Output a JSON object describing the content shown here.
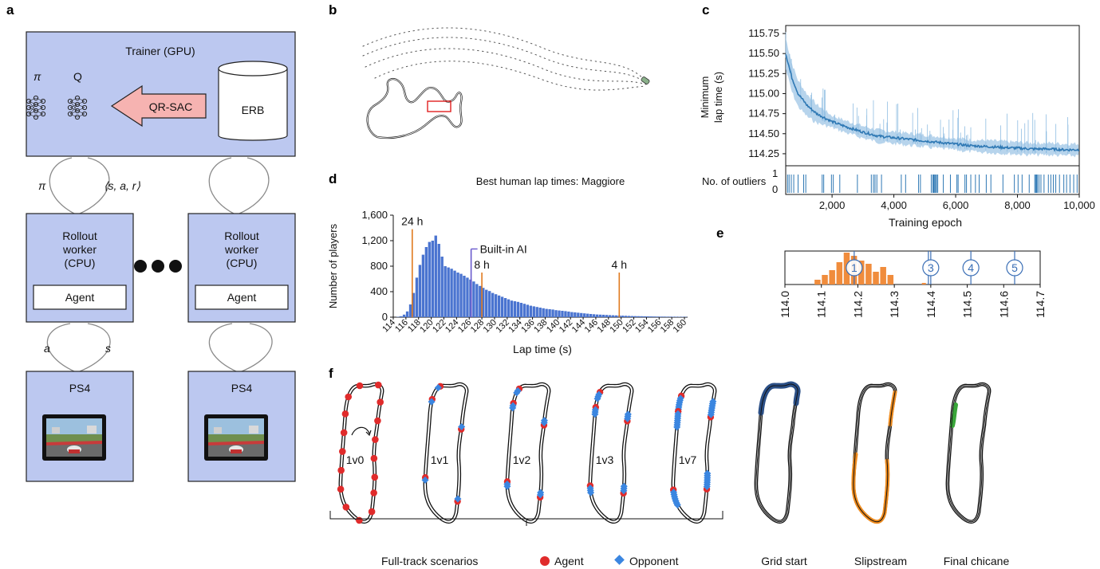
{
  "panels": {
    "a": "a",
    "b": "b",
    "c": "c",
    "d": "d",
    "e": "e",
    "f": "f"
  },
  "panel_a": {
    "trainer_title": "Trainer (GPU)",
    "pi_label": "π",
    "q_label": "Q",
    "qrsac_label": "QR-SAC",
    "erb_label": "ERB",
    "arc_left_label": "π",
    "arc_right_label": "⟨s, a, r⟩",
    "worker_line1": "Rollout",
    "worker_line2": "worker",
    "worker_line3": "(CPU)",
    "agent_label": "Agent",
    "a_label": "a",
    "s_label": "s",
    "ps4_label": "PS4",
    "colors": {
      "box": "#bcc8f0",
      "arrow": "#f6b3b1"
    }
  },
  "chart_data": [
    {
      "id": "c",
      "type": "line",
      "ylabel_line1": "Minimum",
      "ylabel_line2": "lap time (s)",
      "xlabel": "Training epoch",
      "ylim": [
        114.1,
        115.85
      ],
      "xlim": [
        500,
        10000
      ],
      "yticks": [
        "114.25",
        "114.50",
        "114.75",
        "115.00",
        "115.25",
        "115.50",
        "115.75"
      ],
      "ytick_values": [
        114.25,
        114.5,
        114.75,
        115.0,
        115.25,
        115.5,
        115.75
      ],
      "xticks": [
        "2,000",
        "4,000",
        "6,000",
        "8,000",
        "10,000"
      ],
      "xtick_values": [
        2000,
        4000,
        6000,
        8000,
        10000
      ],
      "series_x": [
        500,
        700,
        900,
        1200,
        1500,
        2000,
        2500,
        3000,
        3500,
        4000,
        4500,
        5000,
        5500,
        6000,
        6500,
        7000,
        7500,
        8000,
        8500,
        9000,
        9500,
        10000
      ],
      "series_y": [
        115.5,
        115.2,
        115.0,
        114.85,
        114.75,
        114.65,
        114.58,
        114.52,
        114.47,
        114.45,
        114.43,
        114.41,
        114.39,
        114.37,
        114.35,
        114.34,
        114.33,
        114.32,
        114.31,
        114.31,
        114.3,
        114.3
      ],
      "outliers_label": "No. of outliers",
      "outliers_yticks": [
        "1",
        "0"
      ],
      "outlier_epochs": [
        560,
        610,
        680,
        760,
        900,
        1080,
        1150,
        1680,
        1730,
        1980,
        2040,
        2250,
        2820,
        3270,
        3340,
        3390,
        3450,
        3600,
        4240,
        4380,
        4800,
        4860,
        5210,
        5260,
        5290,
        5320,
        5350,
        5380,
        5420,
        5600,
        5830,
        6040,
        6080,
        6300,
        6350,
        6490,
        6640,
        6760,
        6990,
        7140,
        7530,
        7900,
        8020,
        8150,
        8380,
        8560,
        8590,
        8620,
        8650,
        8700,
        8760,
        8860,
        9000,
        9080,
        9160,
        9240,
        9360,
        9500,
        9590,
        9700,
        9820,
        9930
      ],
      "color": "#2e78b4"
    },
    {
      "id": "d",
      "type": "bar",
      "title": "Best human lap times: Maggiore",
      "xlabel": "Lap time (s)",
      "ylabel": "Number of players",
      "ylim": [
        0,
        1600
      ],
      "yticks": [
        "0",
        "400",
        "800",
        "1,200",
        "1,600"
      ],
      "ytick_values": [
        0,
        400,
        800,
        1200,
        1600
      ],
      "xlim": [
        114,
        160.5
      ],
      "xticks": [
        "114",
        "116",
        "118",
        "120",
        "122",
        "124",
        "126",
        "128",
        "130",
        "132",
        "134",
        "136",
        "138",
        "140",
        "142",
        "144",
        "146",
        "148",
        "150",
        "152",
        "154",
        "156",
        "158",
        "160"
      ],
      "bin_start": 114.5,
      "bin_width": 0.5,
      "values": [
        5,
        15,
        40,
        90,
        200,
        380,
        620,
        820,
        980,
        1100,
        1180,
        1200,
        1280,
        1150,
        950,
        800,
        780,
        760,
        730,
        700,
        680,
        650,
        620,
        590,
        560,
        520,
        490,
        460,
        430,
        410,
        380,
        360,
        340,
        320,
        300,
        280,
        260,
        250,
        240,
        225,
        210,
        195,
        180,
        170,
        160,
        150,
        140,
        130,
        125,
        120,
        110,
        105,
        100,
        95,
        88,
        80,
        75,
        70,
        65,
        60,
        55,
        50,
        46,
        42,
        40,
        38,
        35,
        32,
        30,
        28,
        26,
        24,
        22,
        20,
        18,
        17,
        16,
        15,
        14,
        13,
        12,
        11,
        10,
        9,
        9,
        8,
        8,
        7,
        7,
        6,
        6,
        5
      ],
      "markers": [
        {
          "label": "24 h",
          "x": 117.0,
          "top": 1380,
          "color": "#e07b20"
        },
        {
          "label": "Built-in AI",
          "x": 126.3,
          "top": 1070,
          "color": "#6a5acd"
        },
        {
          "label": "8 h",
          "x": 128.0,
          "top": 700,
          "color": "#e07b20"
        },
        {
          "label": "4 h",
          "x": 149.7,
          "top": 700,
          "color": "#e07b20"
        }
      ],
      "color": "#4a74d0"
    },
    {
      "id": "e",
      "type": "bar",
      "xlim": [
        114.0,
        114.7
      ],
      "xticks": [
        "114.0",
        "114.1",
        "114.2",
        "114.3",
        "114.4",
        "114.5",
        "114.6",
        "114.7"
      ],
      "xtick_values": [
        114.0,
        114.1,
        114.2,
        114.3,
        114.4,
        114.5,
        114.6,
        114.7
      ],
      "bins_x": [
        114.09,
        114.11,
        114.13,
        114.15,
        114.17,
        114.19,
        114.21,
        114.23,
        114.25,
        114.27,
        114.29
      ],
      "values": [
        0.15,
        0.3,
        0.45,
        0.7,
        1.0,
        0.9,
        0.75,
        0.65,
        0.4,
        0.55,
        0.3
      ],
      "bar_color": "#f08c3c",
      "markers": [
        {
          "label": "1",
          "x": 114.19
        },
        {
          "label": "3",
          "x": 114.4
        },
        {
          "label": "4",
          "x": 114.51
        },
        {
          "label": "5",
          "x": 114.63
        }
      ],
      "marker_color": "#3b6fb6"
    }
  ],
  "panel_f": {
    "scenarios": [
      "1v0",
      "1v1",
      "1v2",
      "1v3",
      "1v7"
    ],
    "bracket_label": "Full-track scenarios",
    "legend_agent": "Agent",
    "legend_opponent": "Opponent",
    "grid_start": "Grid start",
    "slipstream": "Slipstream",
    "final_chicane": "Final chicane",
    "colors": {
      "agent": "#e02b2b",
      "opponent": "#3b86e0",
      "grid": "#2b4f86",
      "slip": "#f08c1e",
      "chicane": "#3aa63a"
    }
  }
}
